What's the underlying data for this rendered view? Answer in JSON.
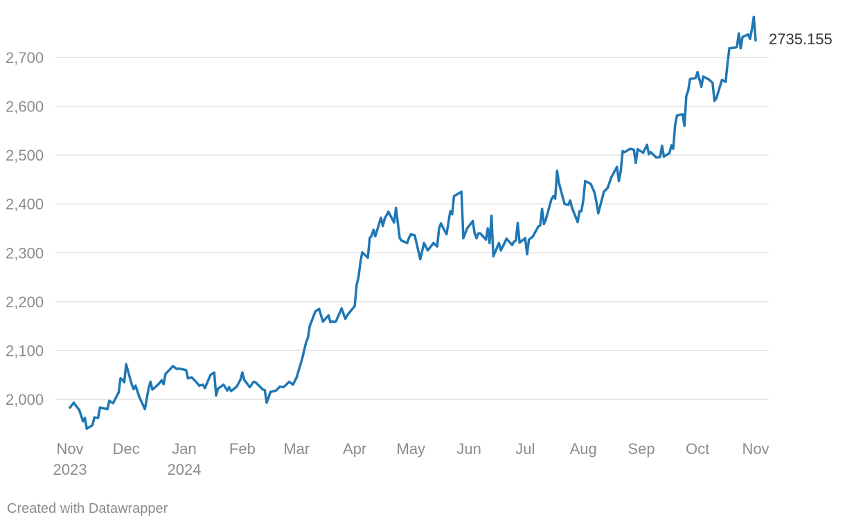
{
  "chart_data": {
    "type": "line",
    "title": "",
    "xlabel": "",
    "ylabel": "",
    "ylim": [
      1938,
      2790
    ],
    "y_ticks": [
      2000,
      2100,
      2200,
      2300,
      2400,
      2500,
      2600,
      2700
    ],
    "y_tick_labels": [
      "2,000",
      "2,100",
      "2,200",
      "2,300",
      "2,400",
      "2,500",
      "2,600",
      "2,700"
    ],
    "x_ticks": [
      {
        "date": "2023-11-01",
        "label": "Nov",
        "sub": "2023"
      },
      {
        "date": "2023-12-01",
        "label": "Dec",
        "sub": ""
      },
      {
        "date": "2024-01-01",
        "label": "Jan",
        "sub": "2024"
      },
      {
        "date": "2024-02-01",
        "label": "Feb",
        "sub": ""
      },
      {
        "date": "2024-03-01",
        "label": "Mar",
        "sub": ""
      },
      {
        "date": "2024-04-01",
        "label": "Apr",
        "sub": ""
      },
      {
        "date": "2024-05-01",
        "label": "May",
        "sub": ""
      },
      {
        "date": "2024-06-01",
        "label": "Jun",
        "sub": ""
      },
      {
        "date": "2024-07-01",
        "label": "Jul",
        "sub": ""
      },
      {
        "date": "2024-08-01",
        "label": "Aug",
        "sub": ""
      },
      {
        "date": "2024-09-01",
        "label": "Sep",
        "sub": ""
      },
      {
        "date": "2024-10-01",
        "label": "Oct",
        "sub": ""
      },
      {
        "date": "2024-11-01",
        "label": "Nov",
        "sub": ""
      }
    ],
    "grid": true,
    "line_color": "#1f77b4",
    "end_label": "2735.155",
    "series": [
      {
        "x": [
          "2023-11-01",
          "2023-11-03",
          "2023-11-06",
          "2023-11-08",
          "2023-11-09",
          "2023-11-10",
          "2023-11-13",
          "2023-11-14",
          "2023-11-16",
          "2023-11-17",
          "2023-11-20",
          "2023-11-21",
          "2023-11-22",
          "2023-11-24",
          "2023-11-27",
          "2023-11-28",
          "2023-11-29",
          "2023-11-30",
          "2023-12-01",
          "2023-12-04",
          "2023-12-05",
          "2023-12-06",
          "2023-12-08",
          "2023-12-11",
          "2023-12-13",
          "2023-12-14",
          "2023-12-15",
          "2023-12-18",
          "2023-12-20",
          "2023-12-21",
          "2023-12-22",
          "2023-12-25",
          "2023-12-26",
          "2023-12-28",
          "2023-12-29",
          "2024-01-02",
          "2024-01-03",
          "2024-01-05",
          "2024-01-08",
          "2024-01-09",
          "2024-01-11",
          "2024-01-12",
          "2024-01-15",
          "2024-01-17",
          "2024-01-18",
          "2024-01-19",
          "2024-01-22",
          "2024-01-24",
          "2024-01-25",
          "2024-01-26",
          "2024-01-29",
          "2024-01-31",
          "2024-02-01",
          "2024-02-02",
          "2024-02-05",
          "2024-02-07",
          "2024-02-08",
          "2024-02-12",
          "2024-02-13",
          "2024-02-14",
          "2024-02-16",
          "2024-02-19",
          "2024-02-21",
          "2024-02-23",
          "2024-02-26",
          "2024-02-28",
          "2024-03-01",
          "2024-03-04",
          "2024-03-06",
          "2024-03-07",
          "2024-03-08",
          "2024-03-11",
          "2024-03-13",
          "2024-03-15",
          "2024-03-18",
          "2024-03-19",
          "2024-03-20",
          "2024-03-21",
          "2024-03-22",
          "2024-03-25",
          "2024-03-27",
          "2024-03-28",
          "2024-04-01",
          "2024-04-02",
          "2024-04-03",
          "2024-04-04",
          "2024-04-05",
          "2024-04-08",
          "2024-04-09",
          "2024-04-10",
          "2024-04-11",
          "2024-04-12",
          "2024-04-15",
          "2024-04-16",
          "2024-04-17",
          "2024-04-19",
          "2024-04-22",
          "2024-04-23",
          "2024-04-25",
          "2024-04-26",
          "2024-04-29",
          "2024-04-30",
          "2024-05-01",
          "2024-05-03",
          "2024-05-06",
          "2024-05-08",
          "2024-05-10",
          "2024-05-13",
          "2024-05-15",
          "2024-05-16",
          "2024-05-17",
          "2024-05-20",
          "2024-05-22",
          "2024-05-23",
          "2024-05-24",
          "2024-05-28",
          "2024-05-29",
          "2024-05-30",
          "2024-05-31",
          "2024-06-03",
          "2024-06-04",
          "2024-06-05",
          "2024-06-06",
          "2024-06-07",
          "2024-06-10",
          "2024-06-11",
          "2024-06-12",
          "2024-06-13",
          "2024-06-14",
          "2024-06-17",
          "2024-06-18",
          "2024-06-20",
          "2024-06-21",
          "2024-06-24",
          "2024-06-25",
          "2024-06-26",
          "2024-06-27",
          "2024-06-28",
          "2024-07-01",
          "2024-07-02",
          "2024-07-03",
          "2024-07-05",
          "2024-07-08",
          "2024-07-09",
          "2024-07-10",
          "2024-07-11",
          "2024-07-12",
          "2024-07-15",
          "2024-07-16",
          "2024-07-17",
          "2024-07-18",
          "2024-07-19",
          "2024-07-22",
          "2024-07-24",
          "2024-07-25",
          "2024-07-26",
          "2024-07-29",
          "2024-07-30",
          "2024-07-31",
          "2024-08-01",
          "2024-08-02",
          "2024-08-05",
          "2024-08-07",
          "2024-08-08",
          "2024-08-09",
          "2024-08-12",
          "2024-08-14",
          "2024-08-16",
          "2024-08-19",
          "2024-08-20",
          "2024-08-21",
          "2024-08-22",
          "2024-08-23",
          "2024-08-26",
          "2024-08-28",
          "2024-08-29",
          "2024-08-30",
          "2024-09-02",
          "2024-09-04",
          "2024-09-05",
          "2024-09-06",
          "2024-09-09",
          "2024-09-11",
          "2024-09-12",
          "2024-09-13",
          "2024-09-16",
          "2024-09-17",
          "2024-09-18",
          "2024-09-19",
          "2024-09-20",
          "2024-09-23",
          "2024-09-24",
          "2024-09-25",
          "2024-09-26",
          "2024-09-27",
          "2024-09-30",
          "2024-10-01",
          "2024-10-02",
          "2024-10-03",
          "2024-10-04",
          "2024-10-07",
          "2024-10-09",
          "2024-10-10",
          "2024-10-11",
          "2024-10-14",
          "2024-10-16",
          "2024-10-17",
          "2024-10-18",
          "2024-10-21",
          "2024-10-22",
          "2024-10-23",
          "2024-10-24",
          "2024-10-25",
          "2024-10-28",
          "2024-10-29",
          "2024-10-30",
          "2024-10-31",
          "2024-11-01"
        ],
        "values": [
          1983,
          1993,
          1978,
          1955,
          1962,
          1940,
          1947,
          1963,
          1962,
          1983,
          1981,
          1980,
          1997,
          1992,
          2014,
          2043,
          2040,
          2035,
          2072,
          2030,
          2021,
          2028,
          2005,
          1980,
          2023,
          2036,
          2020,
          2030,
          2039,
          2031,
          2052,
          2064,
          2068,
          2062,
          2063,
          2060,
          2043,
          2045,
          2033,
          2028,
          2030,
          2023,
          2050,
          2055,
          2008,
          2022,
          2030,
          2018,
          2025,
          2017,
          2026,
          2040,
          2055,
          2040,
          2025,
          2036,
          2035,
          2020,
          2019,
          1993,
          2015,
          2018,
          2026,
          2025,
          2036,
          2030,
          2045,
          2084,
          2116,
          2126,
          2150,
          2180,
          2185,
          2159,
          2172,
          2158,
          2160,
          2158,
          2160,
          2186,
          2165,
          2172,
          2191,
          2234,
          2250,
          2280,
          2301,
          2290,
          2330,
          2335,
          2347,
          2334,
          2372,
          2355,
          2370,
          2384,
          2362,
          2392,
          2330,
          2325,
          2320,
          2331,
          2338,
          2336,
          2287,
          2320,
          2305,
          2320,
          2313,
          2350,
          2360,
          2338,
          2385,
          2379,
          2416,
          2425,
          2330,
          2340,
          2350,
          2365,
          2340,
          2330,
          2340,
          2340,
          2327,
          2350,
          2320,
          2376,
          2293,
          2320,
          2305,
          2320,
          2329,
          2316,
          2323,
          2325,
          2361,
          2321,
          2330,
          2297,
          2327,
          2333,
          2354,
          2356,
          2390,
          2359,
          2368,
          2410,
          2416,
          2411,
          2468,
          2443,
          2400,
          2398,
          2407,
          2392,
          2363,
          2385,
          2385,
          2407,
          2447,
          2441,
          2423,
          2404,
          2381,
          2425,
          2433,
          2455,
          2476,
          2447,
          2467,
          2508,
          2506,
          2513,
          2511,
          2484,
          2512,
          2505,
          2521,
          2502,
          2506,
          2495,
          2496,
          2519,
          2497,
          2504,
          2520,
          2513,
          2561,
          2581,
          2584,
          2560,
          2621,
          2632,
          2656,
          2658,
          2670,
          2655,
          2640,
          2661,
          2655,
          2648,
          2611,
          2616,
          2654,
          2650,
          2688,
          2719,
          2720,
          2722,
          2749,
          2719,
          2742,
          2747,
          2738,
          2758,
          2783,
          2735
        ]
      }
    ]
  },
  "credit": "Created with Datawrapper"
}
